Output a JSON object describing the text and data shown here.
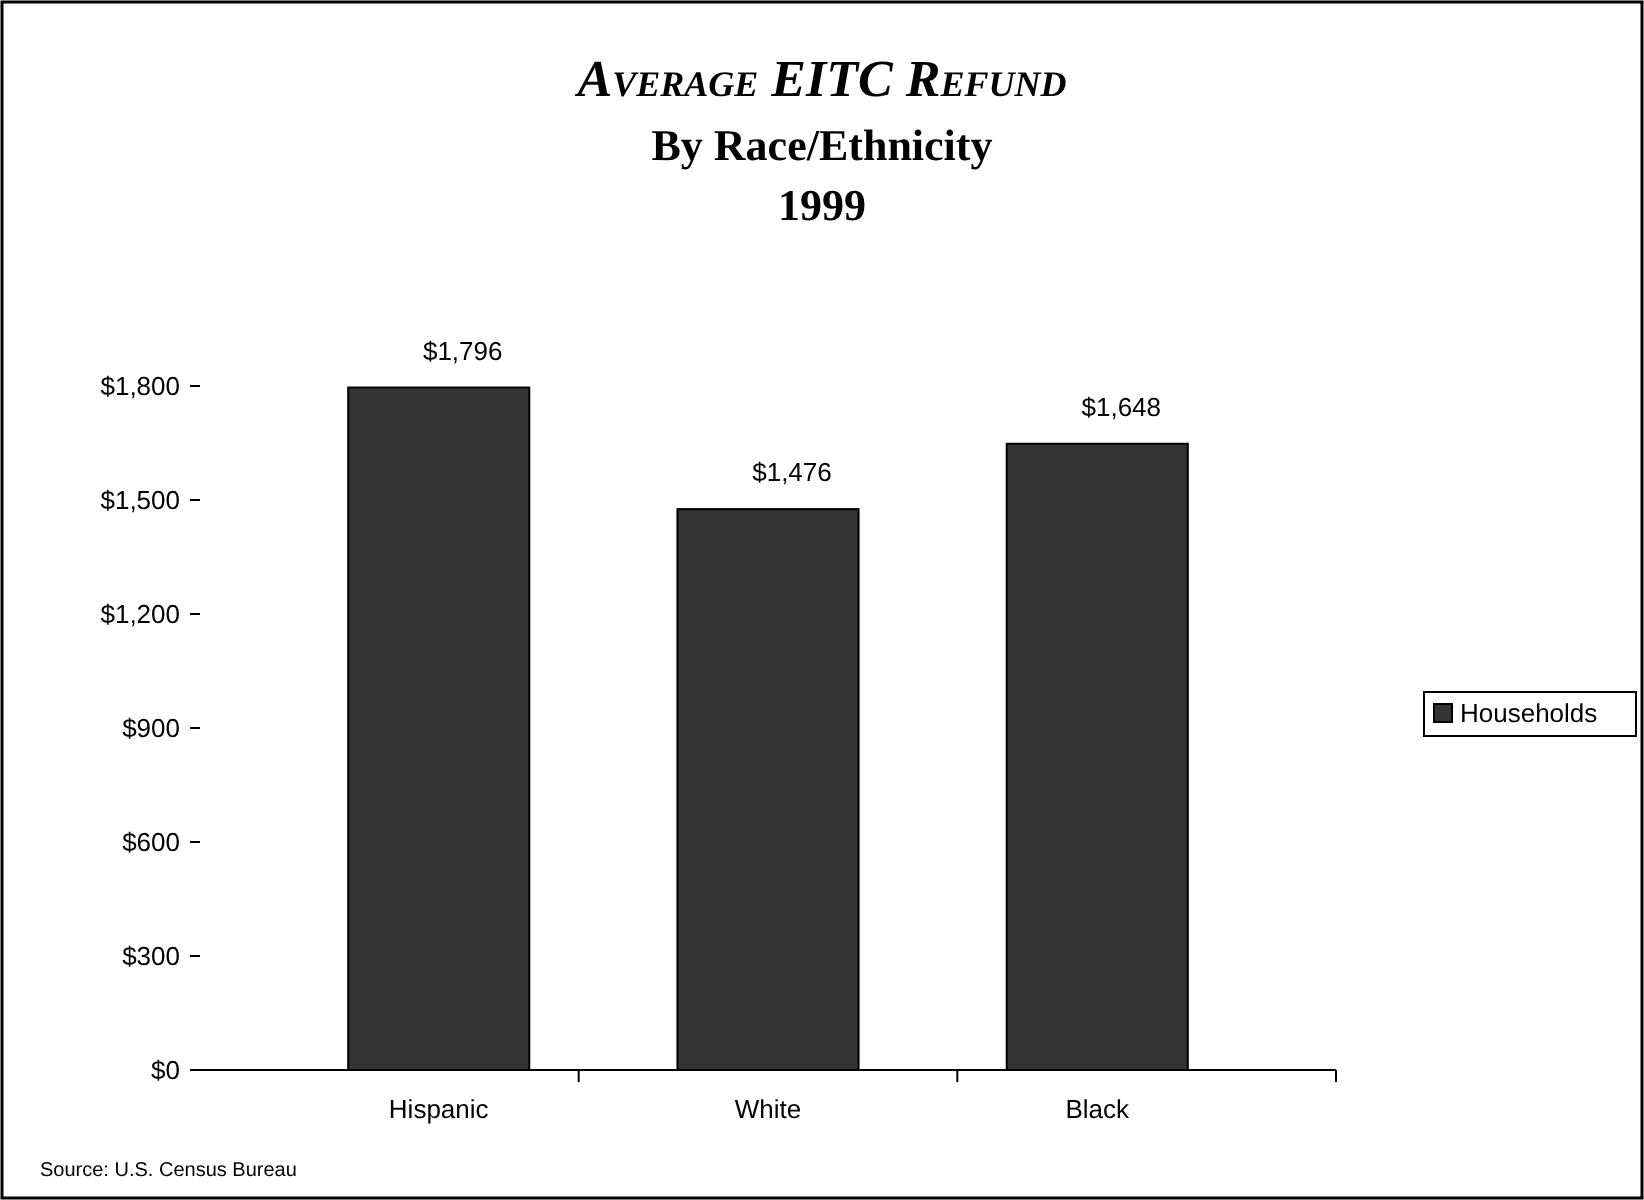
{
  "chart_data": {
    "type": "bar",
    "title": "Average EITC Refund",
    "subtitle": "By Race/Ethnicity\n1999",
    "categories": [
      "Hispanic",
      "White",
      "Black"
    ],
    "series": [
      {
        "name": "Households",
        "color": "#333333",
        "values": [
          1796,
          1476,
          1648
        ],
        "value_labels": [
          "$1,796",
          "$1,476",
          "$1,648"
        ]
      }
    ],
    "ylim": [
      0,
      1800
    ],
    "yticks": [
      {
        "value": 0,
        "label": "$0"
      },
      {
        "value": 300,
        "label": "$300"
      },
      {
        "value": 600,
        "label": "$600"
      },
      {
        "value": 900,
        "label": "$900"
      },
      {
        "value": 1200,
        "label": "$1,200"
      },
      {
        "value": 1500,
        "label": "$1,500"
      },
      {
        "value": 1800,
        "label": "$1,800"
      }
    ],
    "grid": false,
    "legend": "right",
    "annotations": [
      "Source: U.S. Census Bureau"
    ]
  }
}
